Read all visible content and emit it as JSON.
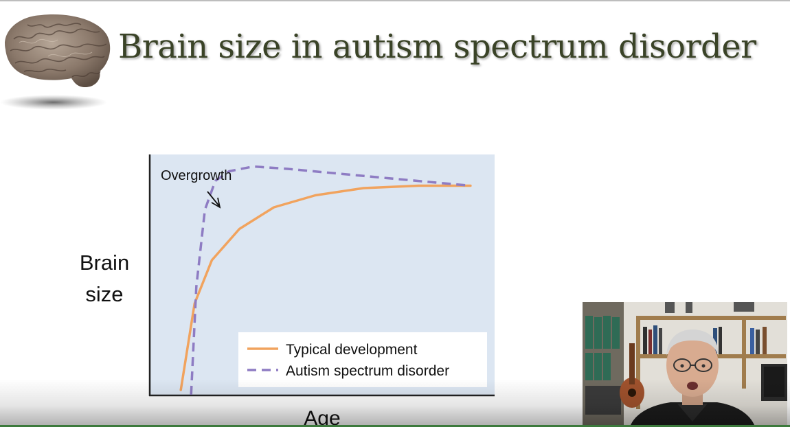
{
  "slide": {
    "title": "Brain size in autism spectrum disorder",
    "logo_icon": "brain-icon"
  },
  "chart_data": {
    "type": "line",
    "title": "",
    "xlabel": "Age",
    "ylabel": "Brain size",
    "annotation": "Overgrowth",
    "xlim": [
      0,
      1
    ],
    "ylim": [
      0,
      1
    ],
    "x_ticks": "none",
    "y_ticks": "none",
    "background": "#dce6f2",
    "grid": false,
    "legend_position": "bottom-right",
    "series": [
      {
        "name": "Typical development",
        "color": "#f1a35e",
        "style": "solid",
        "points": [
          [
            0.09,
            0.02
          ],
          [
            0.13,
            0.38
          ],
          [
            0.18,
            0.56
          ],
          [
            0.26,
            0.69
          ],
          [
            0.36,
            0.78
          ],
          [
            0.48,
            0.83
          ],
          [
            0.62,
            0.86
          ],
          [
            0.78,
            0.87
          ],
          [
            0.93,
            0.87
          ]
        ]
      },
      {
        "name": "Autism spectrum disorder",
        "color": "#8e7cc3",
        "style": "dashed",
        "points": [
          [
            0.12,
            0.0
          ],
          [
            0.135,
            0.45
          ],
          [
            0.16,
            0.77
          ],
          [
            0.19,
            0.89
          ],
          [
            0.23,
            0.93
          ],
          [
            0.3,
            0.95
          ],
          [
            0.4,
            0.94
          ],
          [
            0.55,
            0.92
          ],
          [
            0.7,
            0.9
          ],
          [
            0.93,
            0.87
          ]
        ]
      }
    ]
  },
  "webcam": {
    "icon": "presenter-video-icon"
  }
}
